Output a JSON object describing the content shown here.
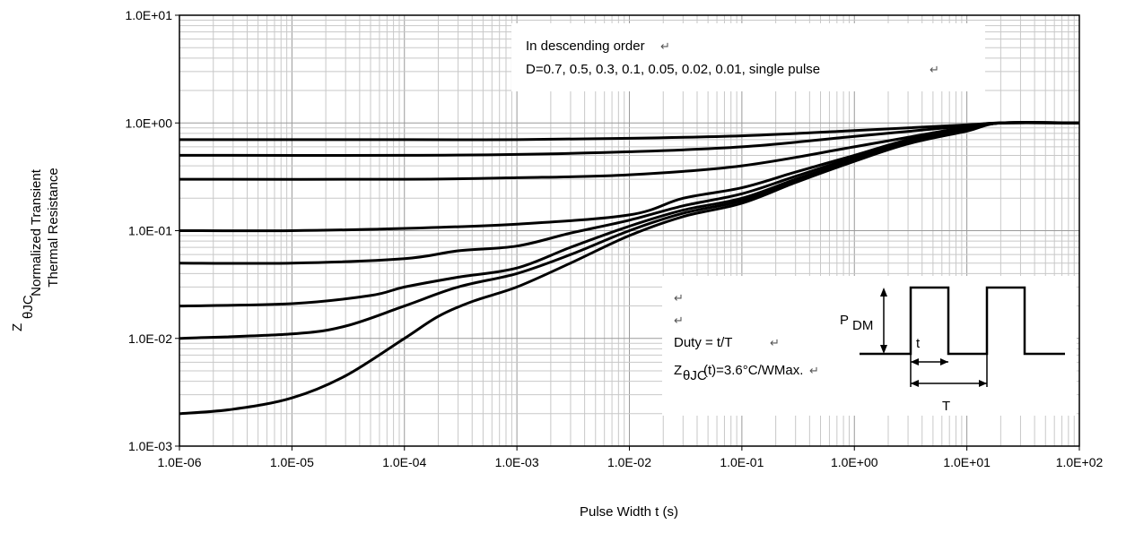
{
  "chart_data": {
    "type": "line",
    "x_scale": "log",
    "y_scale": "log",
    "xlim": [
      1e-06,
      100
    ],
    "ylim": [
      0.001,
      10
    ],
    "grid": true,
    "xlabel": "Pulse Width t (s)",
    "ylabel": {
      "symbol": "Z",
      "subscript": "θJC",
      "line1": "Normalized Transient",
      "line2": "Thermal Resistance"
    },
    "x_ticks": [
      "1.0E-06",
      "1.0E-05",
      "1.0E-04",
      "1.0E-03",
      "1.0E-02",
      "1.0E-01",
      "1.0E+00",
      "1.0E+01",
      "1.0E+02"
    ],
    "y_ticks": [
      "1.0E+01",
      "1.0E+00",
      "1.0E-01",
      "1.0E-02",
      "1.0E-03"
    ],
    "annotation": {
      "line1": "In descending order",
      "line2": "D=0.7, 0.5, 0.3, 0.1, 0.05, 0.02, 0.01, single pulse"
    },
    "inset": {
      "duty": "Duty = t/T",
      "z_symbol": "Z",
      "z_sub": "θJC",
      "z_rest": "(t)=3.6°C/WMax.",
      "pdm": "P",
      "pdm_sub": "DM",
      "t_small": "t",
      "t_big": "T",
      "return_mark": "↵"
    },
    "series": [
      {
        "values": [
          [
            1e-06,
            0.7
          ],
          [
            0.0001,
            0.7
          ],
          [
            0.001,
            0.7
          ],
          [
            0.01,
            0.72
          ],
          [
            0.1,
            0.76
          ],
          [
            1,
            0.85
          ],
          [
            10,
            0.96
          ],
          [
            20,
            1.0
          ],
          [
            100,
            1.0
          ]
        ]
      },
      {
        "values": [
          [
            1e-06,
            0.5
          ],
          [
            0.0001,
            0.5
          ],
          [
            0.001,
            0.51
          ],
          [
            0.01,
            0.54
          ],
          [
            0.1,
            0.6
          ],
          [
            1,
            0.75
          ],
          [
            10,
            0.94
          ],
          [
            20,
            1.0
          ],
          [
            100,
            1.0
          ]
        ]
      },
      {
        "values": [
          [
            1e-06,
            0.3
          ],
          [
            0.0001,
            0.3
          ],
          [
            0.001,
            0.31
          ],
          [
            0.01,
            0.33
          ],
          [
            0.1,
            0.4
          ],
          [
            1,
            0.6
          ],
          [
            10,
            0.92
          ],
          [
            20,
            1.0
          ],
          [
            100,
            1.0
          ]
        ]
      },
      {
        "values": [
          [
            1e-06,
            0.1
          ],
          [
            1e-05,
            0.1
          ],
          [
            0.0001,
            0.105
          ],
          [
            0.001,
            0.115
          ],
          [
            0.01,
            0.14
          ],
          [
            0.03,
            0.2
          ],
          [
            0.1,
            0.25
          ],
          [
            0.3,
            0.35
          ],
          [
            1,
            0.5
          ],
          [
            3,
            0.7
          ],
          [
            10,
            0.9
          ],
          [
            20,
            1.0
          ],
          [
            100,
            1.0
          ]
        ]
      },
      {
        "values": [
          [
            1e-06,
            0.05
          ],
          [
            1e-05,
            0.05
          ],
          [
            0.0001,
            0.055
          ],
          [
            0.0003,
            0.065
          ],
          [
            0.001,
            0.072
          ],
          [
            0.003,
            0.095
          ],
          [
            0.01,
            0.125
          ],
          [
            0.03,
            0.17
          ],
          [
            0.1,
            0.22
          ],
          [
            0.3,
            0.32
          ],
          [
            1,
            0.48
          ],
          [
            3,
            0.68
          ],
          [
            10,
            0.88
          ],
          [
            20,
            1.0
          ],
          [
            100,
            1.0
          ]
        ]
      },
      {
        "values": [
          [
            1e-06,
            0.02
          ],
          [
            1e-05,
            0.021
          ],
          [
            5e-05,
            0.025
          ],
          [
            0.0001,
            0.03
          ],
          [
            0.0003,
            0.037
          ],
          [
            0.001,
            0.045
          ],
          [
            0.003,
            0.07
          ],
          [
            0.01,
            0.11
          ],
          [
            0.03,
            0.155
          ],
          [
            0.1,
            0.2
          ],
          [
            0.3,
            0.3
          ],
          [
            1,
            0.46
          ],
          [
            3,
            0.66
          ],
          [
            10,
            0.86
          ],
          [
            20,
            1.0
          ],
          [
            100,
            1.0
          ]
        ]
      },
      {
        "values": [
          [
            1e-06,
            0.01
          ],
          [
            1e-05,
            0.011
          ],
          [
            3e-05,
            0.013
          ],
          [
            0.0001,
            0.02
          ],
          [
            0.0003,
            0.03
          ],
          [
            0.001,
            0.04
          ],
          [
            0.003,
            0.06
          ],
          [
            0.01,
            0.1
          ],
          [
            0.03,
            0.145
          ],
          [
            0.1,
            0.19
          ],
          [
            0.3,
            0.29
          ],
          [
            1,
            0.45
          ],
          [
            3,
            0.65
          ],
          [
            10,
            0.85
          ],
          [
            20,
            1.0
          ],
          [
            100,
            1.0
          ]
        ]
      },
      {
        "values": [
          [
            1e-06,
            0.002
          ],
          [
            3e-06,
            0.0022
          ],
          [
            1e-05,
            0.0028
          ],
          [
            3e-05,
            0.0045
          ],
          [
            0.0001,
            0.01
          ],
          [
            0.0002,
            0.016
          ],
          [
            0.0004,
            0.022
          ],
          [
            0.001,
            0.03
          ],
          [
            0.003,
            0.05
          ],
          [
            0.01,
            0.09
          ],
          [
            0.03,
            0.135
          ],
          [
            0.1,
            0.18
          ],
          [
            0.3,
            0.28
          ],
          [
            1,
            0.44
          ],
          [
            3,
            0.64
          ],
          [
            10,
            0.84
          ],
          [
            20,
            1.0
          ],
          [
            100,
            1.0
          ]
        ]
      }
    ]
  }
}
